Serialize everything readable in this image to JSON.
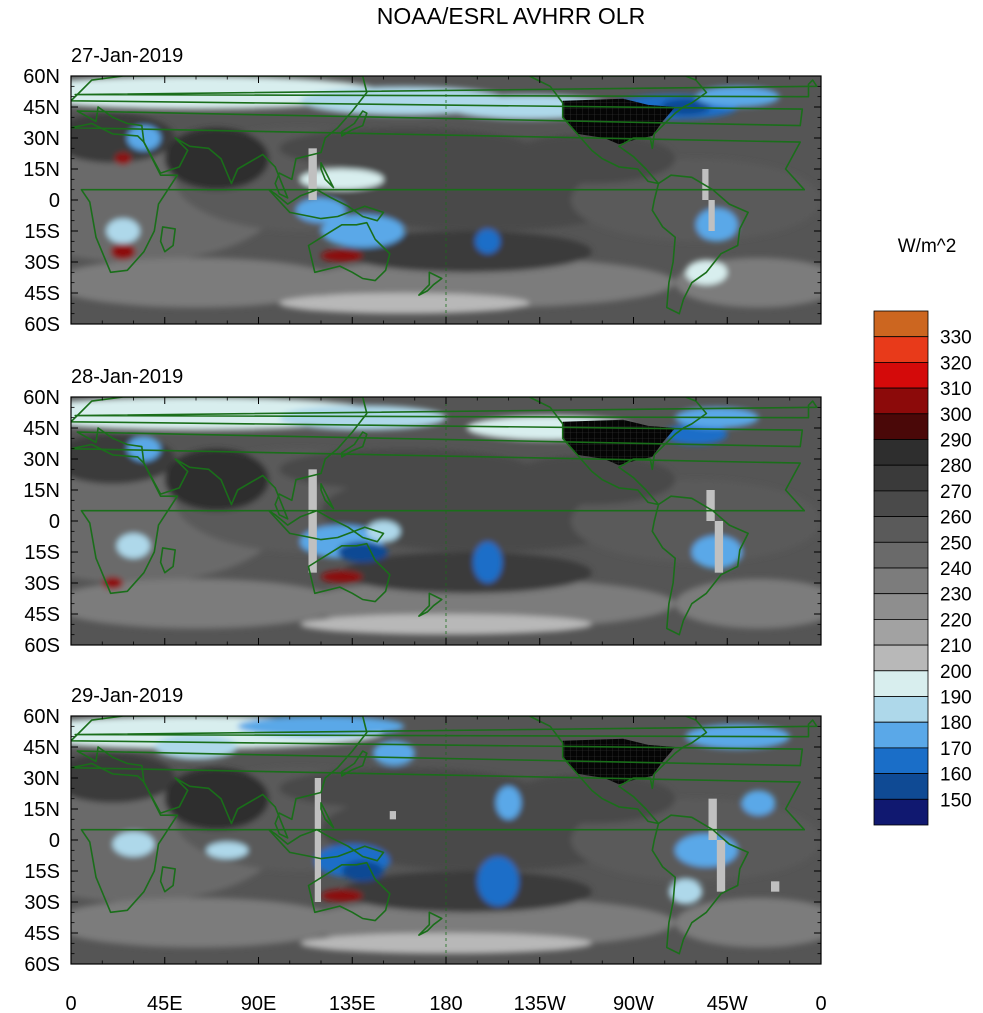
{
  "title": "NOAA/ESRL AVHRR OLR",
  "units": "W/m^2",
  "panels": [
    {
      "date": "27-Jan-2019"
    },
    {
      "date": "28-Jan-2019"
    },
    {
      "date": "29-Jan-2019"
    }
  ],
  "axes": {
    "lat_labels": [
      "60N",
      "45N",
      "30N",
      "15N",
      "0",
      "15S",
      "30S",
      "45S",
      "60S"
    ],
    "lon_labels": [
      "0",
      "45E",
      "90E",
      "135E",
      "180",
      "135W",
      "90W",
      "45W",
      "0"
    ],
    "lat_range": [
      -60,
      60
    ],
    "lon_range": [
      0,
      360
    ]
  },
  "legend": {
    "levels": [
      "330",
      "320",
      "310",
      "300",
      "290",
      "280",
      "270",
      "260",
      "250",
      "240",
      "230",
      "220",
      "210",
      "200",
      "190",
      "180",
      "170",
      "160",
      "150"
    ],
    "colors": [
      "#cc6620",
      "#e83a1a",
      "#d40a0a",
      "#8c0a0a",
      "#4a0808",
      "#2e2e2e",
      "#3a3a3a",
      "#4a4a4a",
      "#5a5a5a",
      "#6a6a6a",
      "#7c7c7c",
      "#8e8e8e",
      "#a2a2a2",
      "#b8b8b8",
      "#d8eeee",
      "#aed8ea",
      "#5aa8e8",
      "#1a6ec8",
      "#0f4a94",
      "#101870"
    ]
  },
  "colors": {
    "coast": "#1a6e1a",
    "missing": "#c0c0c0",
    "background_olr": "#555555"
  }
}
